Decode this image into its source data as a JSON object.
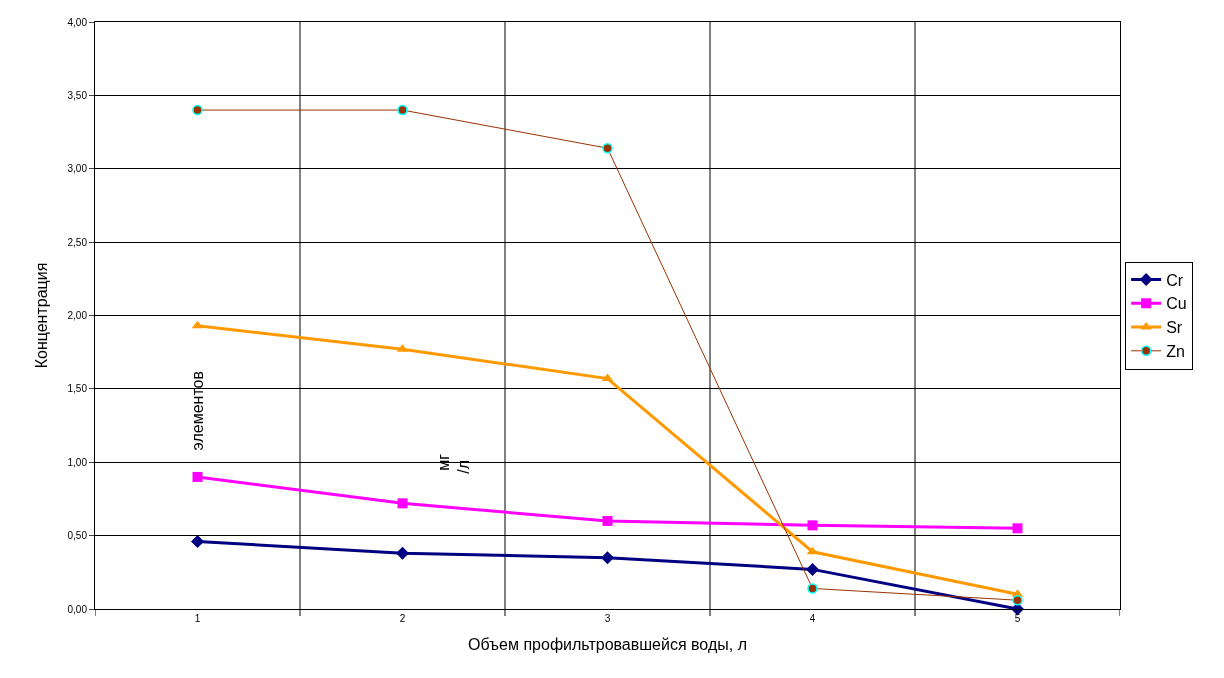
{
  "chart_data": {
    "type": "line",
    "xlabel": "Объем профильтровавшейся воды, л",
    "ylabel": "Концентрация",
    "categories": [
      "1",
      "2",
      "3",
      "4",
      "5"
    ],
    "series": [
      {
        "name": "Cr",
        "color": "#000080",
        "marker": "diamond",
        "values": [
          0.46,
          0.38,
          0.35,
          0.27,
          0.0
        ]
      },
      {
        "name": "Cu",
        "color": "#ff00ff",
        "marker": "square",
        "values": [
          0.9,
          0.72,
          0.6,
          0.57,
          0.55
        ]
      },
      {
        "name": "Sr",
        "color": "#ff9900",
        "marker": "triangle",
        "values": [
          1.93,
          1.77,
          1.57,
          0.39,
          0.1
        ]
      },
      {
        "name": "Zn",
        "color": "#993300",
        "marker": "circle",
        "values": [
          3.4,
          3.4,
          3.14,
          0.14,
          0.06
        ]
      }
    ],
    "ylim": [
      0,
      4
    ],
    "yticks": [
      {
        "value": 0,
        "label": "0,00"
      },
      {
        "value": 0.5,
        "label": "0,50"
      },
      {
        "value": 1,
        "label": "1,00"
      },
      {
        "value": 1.5,
        "label": "1,50"
      },
      {
        "value": 2,
        "label": "2,00"
      },
      {
        "value": 2.5,
        "label": "2,50"
      },
      {
        "value": 3,
        "label": "3,00"
      },
      {
        "value": 3.5,
        "label": "3,50"
      },
      {
        "value": 4,
        "label": "4,00"
      }
    ],
    "annotations": [
      "элементов",
      "мг",
      "/л"
    ],
    "grid": true,
    "legend": "right"
  }
}
